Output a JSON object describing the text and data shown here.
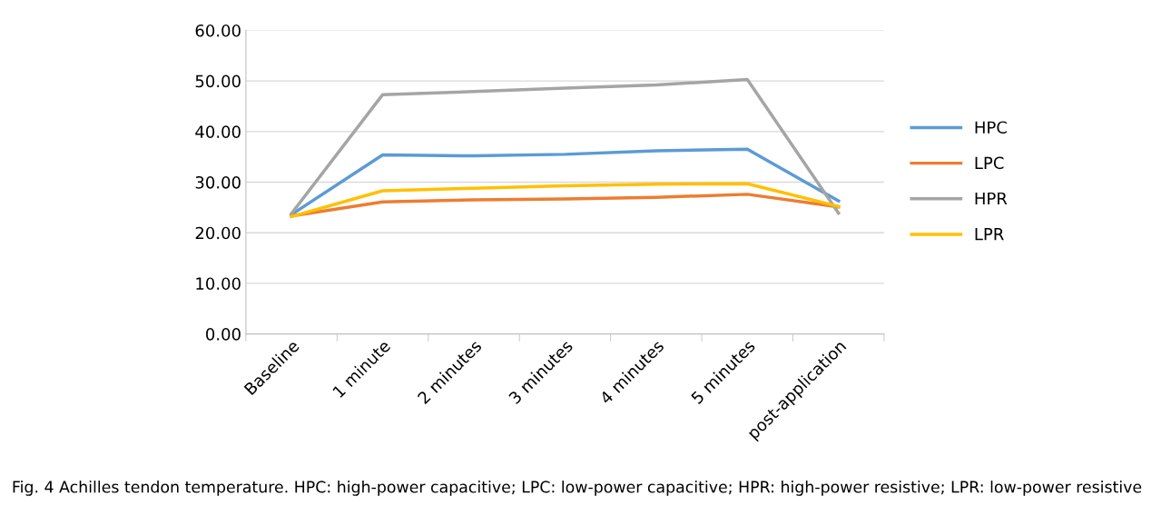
{
  "chart_data": {
    "type": "line",
    "categories": [
      "Baseline",
      "1 minute",
      "2 minutes",
      "3 minutes",
      "4 minutes",
      "5 minutes",
      "post-application"
    ],
    "series": [
      {
        "name": "HPC",
        "color": "#5b9bd5",
        "values": [
          23.6,
          35.4,
          35.2,
          35.5,
          36.2,
          36.5,
          26.3
        ]
      },
      {
        "name": "LPC",
        "color": "#ed7d31",
        "values": [
          23.3,
          26.1,
          26.5,
          26.7,
          27.0,
          27.6,
          25.1
        ]
      },
      {
        "name": "HPR",
        "color": "#a5a5a5",
        "values": [
          23.8,
          47.3,
          47.9,
          48.6,
          49.2,
          50.3,
          23.9
        ]
      },
      {
        "name": "LPR",
        "color": "#ffc000",
        "values": [
          23.2,
          28.3,
          28.8,
          29.3,
          29.6,
          29.7,
          25.2
        ]
      }
    ],
    "ylim": [
      0,
      60
    ],
    "yticks": [
      {
        "value": 0,
        "label": "0.00"
      },
      {
        "value": 10,
        "label": "10.00"
      },
      {
        "value": 20,
        "label": "20.00"
      },
      {
        "value": 30,
        "label": "30.00"
      },
      {
        "value": 40,
        "label": "40.00"
      },
      {
        "value": 50,
        "label": "50.00"
      },
      {
        "value": 60,
        "label": "60.00"
      }
    ],
    "grid": "y",
    "legend": "right",
    "marker": "none",
    "line_style": "solid",
    "annotations": [
      "Fig. 4 Achilles tendon temperature. HPC: high-power capacitive; LPC: low-power capacitive; HPR: high-power resistive; LPR: low-power resistive"
    ]
  }
}
